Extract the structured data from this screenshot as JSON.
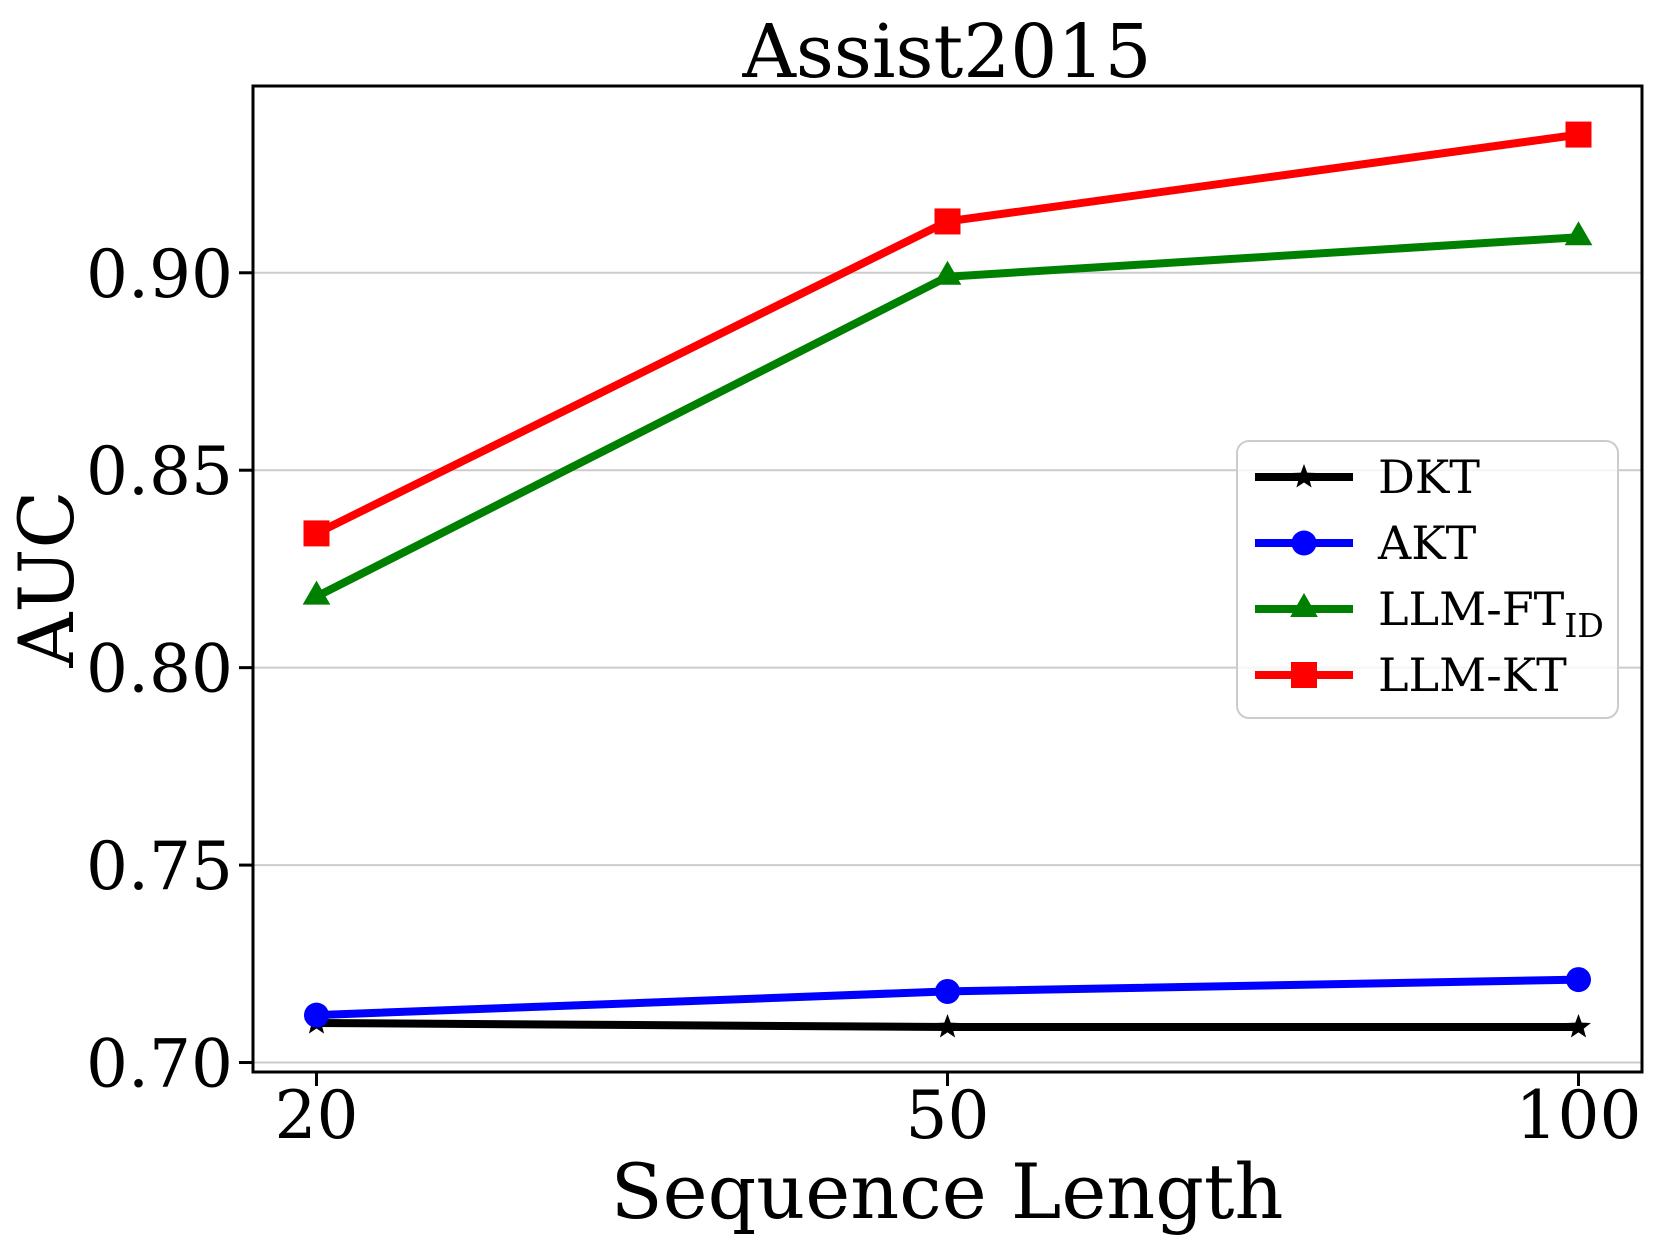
{
  "figure": {
    "title": "Assist2015"
  },
  "chart_data": {
    "type": "line",
    "title": "Assist2015",
    "xlabel": "Sequence Length",
    "ylabel": "AUC",
    "categories": [
      "20",
      "50",
      "100"
    ],
    "x_values": [
      20,
      50,
      100
    ],
    "x_scale": "categorical-equal-spacing",
    "ylim": [
      0.6976,
      0.9473
    ],
    "yticks": [
      0.7,
      0.75,
      0.8,
      0.85,
      0.9
    ],
    "ytick_labels": [
      "0.70",
      "0.75",
      "0.80",
      "0.85",
      "0.90"
    ],
    "grid": {
      "horizontal": true,
      "vertical": false,
      "color": "#cccccc"
    },
    "axis_color": "#000000",
    "legend": {
      "position": "center-right-inside",
      "border_color": "#cccccc",
      "background": "rgba(255,255,255,0.8)",
      "entries": [
        "DKT",
        "AKT",
        "LLM-FT_ID",
        "LLM-KT"
      ]
    },
    "series": [
      {
        "name": "DKT",
        "label": "DKT",
        "label_subscript": "",
        "color": "#000000",
        "marker": "star",
        "values": [
          0.71,
          0.709,
          0.709
        ]
      },
      {
        "name": "AKT",
        "label": "AKT",
        "label_subscript": "",
        "color": "#0000ff",
        "marker": "circle",
        "values": [
          0.712,
          0.718,
          0.721
        ]
      },
      {
        "name": "LLM-FT_ID",
        "label": "LLM-FT",
        "label_subscript": "ID",
        "color": "#008000",
        "marker": "triangle-up",
        "values": [
          0.818,
          0.899,
          0.909
        ]
      },
      {
        "name": "LLM-KT",
        "label": "LLM-KT",
        "label_subscript": "",
        "color": "#ff0000",
        "marker": "square",
        "values": [
          0.834,
          0.913,
          0.935
        ]
      }
    ]
  }
}
